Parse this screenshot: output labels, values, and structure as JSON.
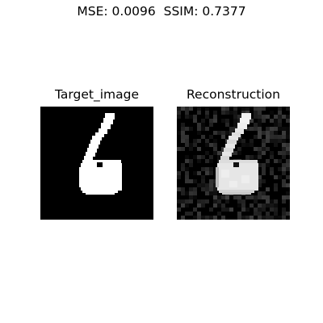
{
  "figure": {
    "suptitle": "MSE: 0.0096  SSIM: 0.7377"
  },
  "panels": [
    {
      "title": "Target_image"
    },
    {
      "title": "Reconstruction"
    }
  ],
  "colors": {
    "background": "#ffffff",
    "image_background": "#000000",
    "digit": "#ffffff"
  }
}
